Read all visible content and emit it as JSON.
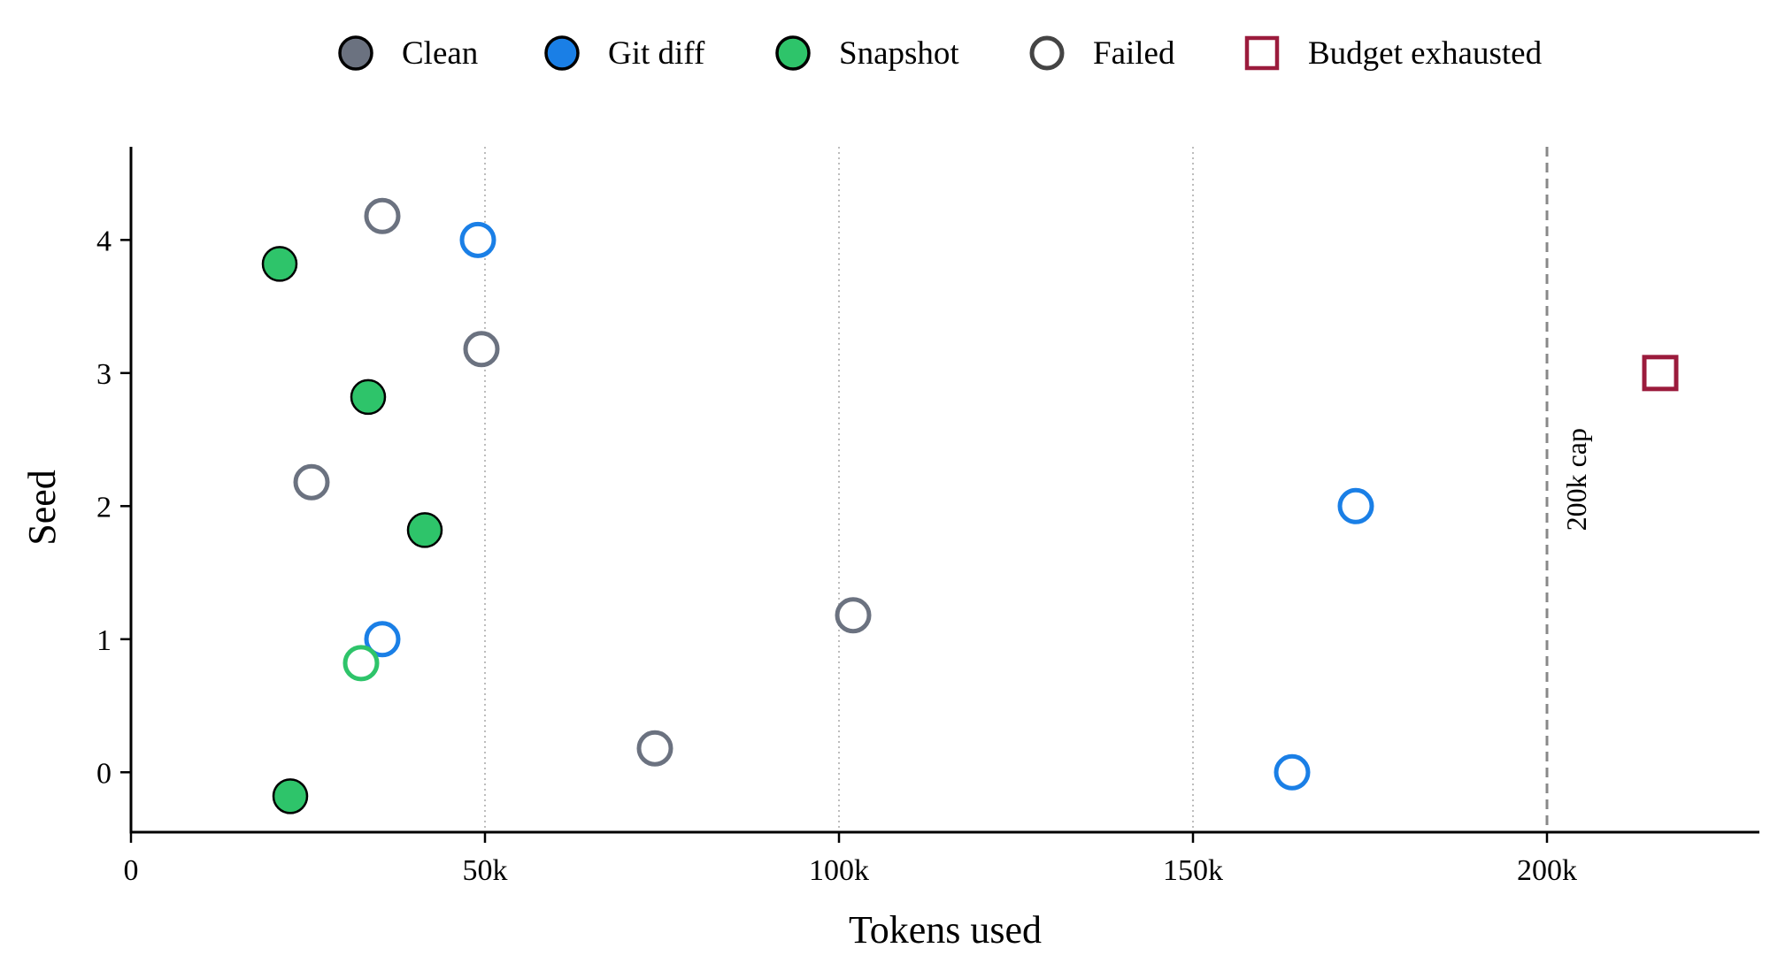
{
  "chart_data": {
    "type": "scatter",
    "title": "",
    "xlabel": "Tokens used",
    "ylabel": "Seed",
    "xlim": [
      0,
      230000
    ],
    "ylim": [
      -0.45,
      4.7
    ],
    "xticks": [
      {
        "value": 0,
        "label": "0"
      },
      {
        "value": 50000,
        "label": "50k"
      },
      {
        "value": 100000,
        "label": "100k"
      },
      {
        "value": 150000,
        "label": "150k"
      },
      {
        "value": 200000,
        "label": "200k"
      }
    ],
    "yticks": [
      {
        "value": 0,
        "label": "0"
      },
      {
        "value": 1,
        "label": "1"
      },
      {
        "value": 2,
        "label": "2"
      },
      {
        "value": 3,
        "label": "3"
      },
      {
        "value": 4,
        "label": "4"
      }
    ],
    "grid": "vertical dotted at 50k, 100k, 150k",
    "legend_position": "top-center",
    "legend": [
      {
        "label": "Clean",
        "marker": "filled-circle",
        "color": "#6b7280"
      },
      {
        "label": "Git diff",
        "marker": "filled-circle",
        "color": "#1a7fe6"
      },
      {
        "label": "Snapshot",
        "marker": "filled-circle",
        "color": "#2ec46a"
      },
      {
        "label": "Failed",
        "marker": "open-circle",
        "color": "#444444"
      },
      {
        "label": "Budget exhausted",
        "marker": "open-square",
        "color": "#9b1b3c"
      }
    ],
    "reference_line": {
      "x": 200000,
      "label": "200k cap",
      "style": "dashed",
      "color": "#888888"
    },
    "series": [
      {
        "name": "Clean",
        "color": "#6b7280",
        "points": [
          {
            "x": 35500,
            "y": 4.18,
            "status": "failed"
          },
          {
            "x": 49500,
            "y": 3.18,
            "status": "failed"
          },
          {
            "x": 25500,
            "y": 2.18,
            "status": "failed"
          },
          {
            "x": 102000,
            "y": 1.18,
            "status": "failed"
          },
          {
            "x": 74000,
            "y": 0.18,
            "status": "failed"
          }
        ]
      },
      {
        "name": "Git diff",
        "color": "#1a7fe6",
        "points": [
          {
            "x": 49000,
            "y": 4.0,
            "status": "failed"
          },
          {
            "x": 216000,
            "y": 3.0,
            "status": "budget"
          },
          {
            "x": 173000,
            "y": 2.0,
            "status": "failed"
          },
          {
            "x": 35500,
            "y": 1.0,
            "status": "failed"
          },
          {
            "x": 164000,
            "y": 0.0,
            "status": "failed"
          }
        ]
      },
      {
        "name": "Snapshot",
        "color": "#2ec46a",
        "points": [
          {
            "x": 21000,
            "y": 3.82,
            "status": "ok"
          },
          {
            "x": 33500,
            "y": 2.82,
            "status": "ok"
          },
          {
            "x": 41500,
            "y": 1.82,
            "status": "ok"
          },
          {
            "x": 32500,
            "y": 0.82,
            "status": "failed"
          },
          {
            "x": 22500,
            "y": -0.18,
            "status": "ok"
          }
        ]
      }
    ],
    "budget_color": "#9b1b3c"
  }
}
